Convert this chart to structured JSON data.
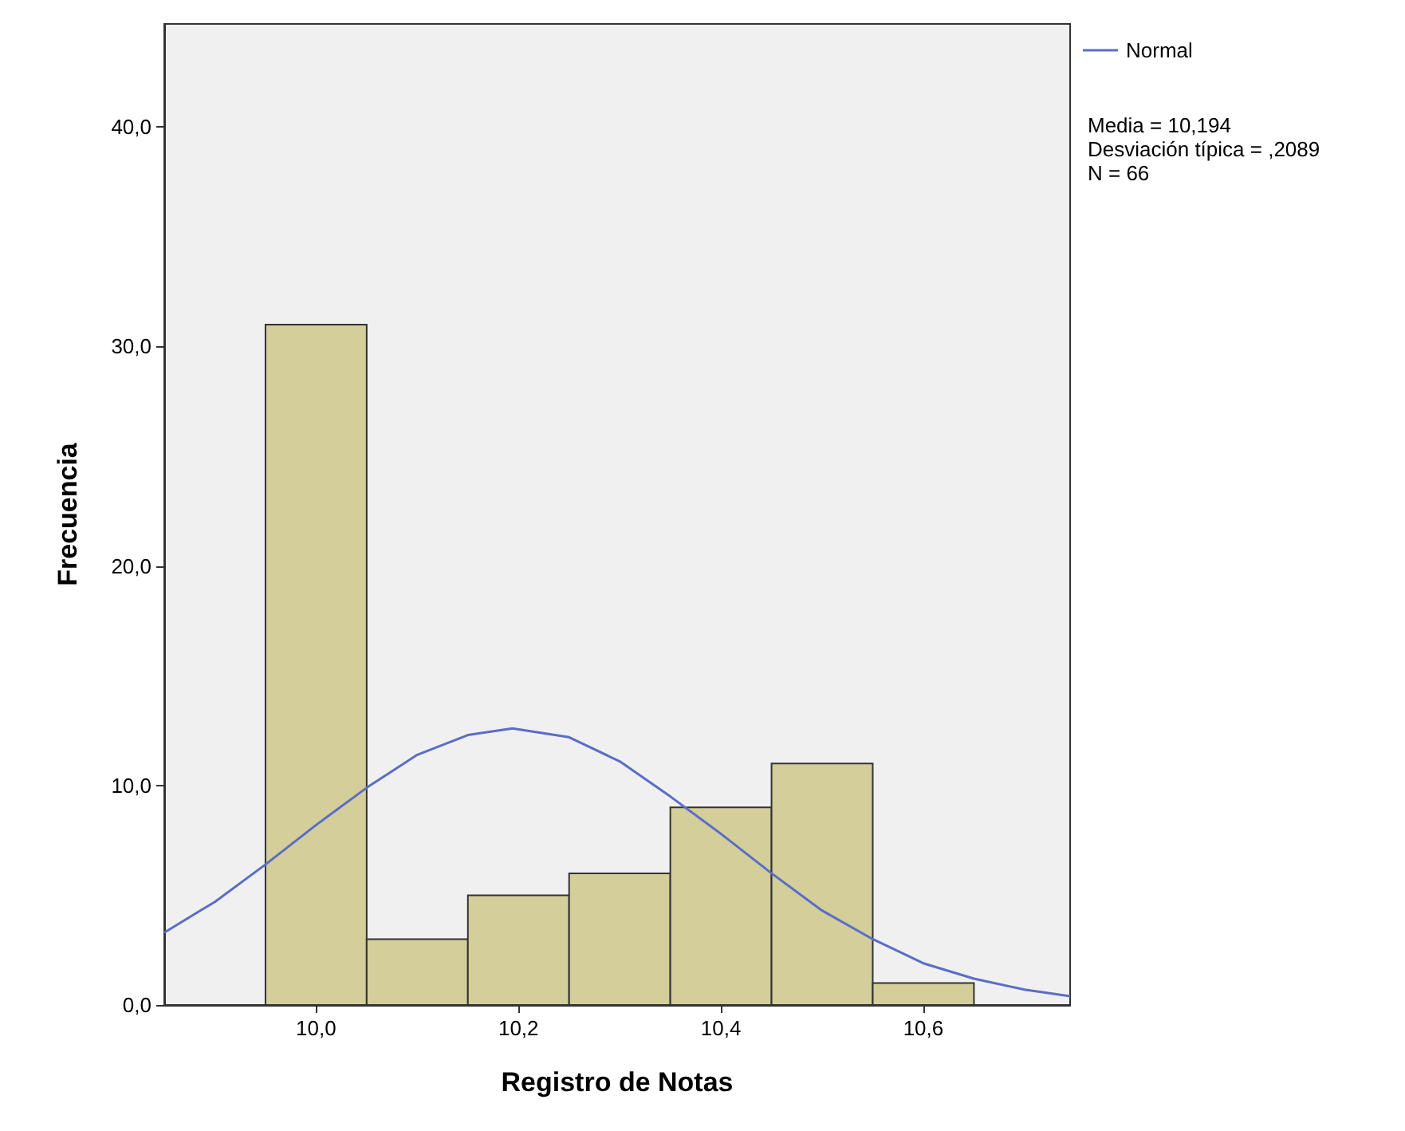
{
  "chart_data": {
    "type": "histogram",
    "xlabel": "Registro de Notas",
    "ylabel": "Frecuencia",
    "bins": [
      9.95,
      10.05,
      10.15,
      10.25,
      10.35,
      10.45,
      10.55,
      10.65
    ],
    "values": [
      31,
      3,
      5,
      6,
      9,
      11,
      1
    ],
    "color": "#d3ce9a",
    "series": [
      {
        "type": "line",
        "name": "Normal",
        "color": "#5b6dc6",
        "x": [
          9.85,
          9.9,
          9.95,
          10.0,
          10.05,
          10.1,
          10.15,
          10.194,
          10.25,
          10.3,
          10.35,
          10.4,
          10.45,
          10.5,
          10.55,
          10.6,
          10.65,
          10.7,
          10.745
        ],
        "values": [
          3.3,
          4.7,
          6.4,
          8.2,
          9.9,
          11.4,
          12.3,
          12.6,
          12.2,
          11.1,
          9.5,
          7.8,
          6.0,
          4.3,
          3.0,
          1.9,
          1.2,
          0.7,
          0.4
        ]
      }
    ],
    "xlim": [
      9.85,
      10.745
    ],
    "xticks": [
      {
        "value": 10.0,
        "label": "10,0"
      },
      {
        "value": 10.2,
        "label": "10,2"
      },
      {
        "value": 10.4,
        "label": "10,4"
      },
      {
        "value": 10.6,
        "label": "10,6"
      }
    ],
    "ylim": [
      0,
      44.7
    ],
    "yticks": [
      {
        "value": 0,
        "label": "0,0"
      },
      {
        "value": 10,
        "label": "10,0"
      },
      {
        "value": 20,
        "label": "20,0"
      },
      {
        "value": 30,
        "label": "30,0"
      },
      {
        "value": 40,
        "label": "40,0"
      }
    ],
    "annotations": [
      "Media = 10,194",
      "Desviación típica = ,2089",
      "N = 66"
    ],
    "legend": "top right",
    "grid": false,
    "line_style": "solid",
    "marker": "none"
  }
}
